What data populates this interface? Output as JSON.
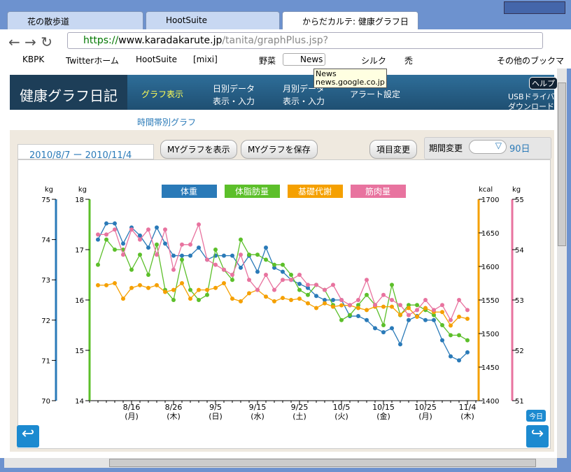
{
  "browser": {
    "tabs": [
      "花の散歩道",
      "HootSuite",
      "からだカルテ: 健康グラフ日記..."
    ],
    "url": {
      "scheme": "https://",
      "host": "www.karadakarute.jp",
      "path": "/tanita/graphPlus.jsp?"
    },
    "bookmarks": [
      "KBPK",
      "Twitterホーム",
      "HootSuite",
      "[mixi]",
      "野菜",
      "News",
      "シルク",
      "禿"
    ],
    "other_bookmarks": "その他のブックマーク",
    "tooltip": [
      "News",
      "news.google.co.jp"
    ]
  },
  "site": {
    "logo": "健康グラフ日記",
    "nav": [
      [
        "グラフ表示"
      ],
      [
        "日別データ",
        "表示・入力"
      ],
      [
        "月別データ",
        "表示・入力"
      ],
      [
        "アラート設定"
      ]
    ],
    "help": "ヘルプ",
    "usb": [
      "USBドライバ",
      "ダウンロード"
    ],
    "subnav": "時間帯別グラフ",
    "range": "2010/8/7 ー 2010/11/4",
    "buttons": [
      "MYグラフを表示",
      "MYグラフを保存",
      "項目変更"
    ],
    "period_label": "期間変更",
    "period": "90日",
    "today": "今日"
  },
  "chart_data": {
    "type": "line",
    "xlim": [
      "8/6",
      "11/7"
    ],
    "xticks": [
      "8/16",
      "8/26",
      "9/5",
      "9/15",
      "9/25",
      "10/5",
      "10/15",
      "10/25",
      "11/4"
    ],
    "xtick_weekdays": [
      "(月)",
      "(木)",
      "(日)",
      "(水)",
      "(土)",
      "(火)",
      "(金)",
      "(月)",
      "(木)"
    ],
    "x": [
      "8/8",
      "8/10",
      "8/12",
      "8/14",
      "8/16",
      "8/18",
      "8/20",
      "8/22",
      "8/24",
      "8/26",
      "8/28",
      "8/30",
      "9/1",
      "9/3",
      "9/5",
      "9/7",
      "9/9",
      "9/11",
      "9/13",
      "9/15",
      "9/17",
      "9/19",
      "9/21",
      "9/23",
      "9/25",
      "9/27",
      "9/29",
      "10/1",
      "10/3",
      "10/5",
      "10/7",
      "10/9",
      "10/11",
      "10/13",
      "10/15",
      "10/17",
      "10/19",
      "10/21",
      "10/23",
      "10/25",
      "10/27",
      "10/29",
      "10/31",
      "11/2",
      "11/4"
    ],
    "series": [
      {
        "name": "体重",
        "color": "#2a7ab8",
        "unit": "kg",
        "side": "left-outer",
        "ylim": [
          70,
          75
        ],
        "yticks": [
          70,
          71,
          72,
          73,
          74,
          75
        ],
        "values": [
          74.0,
          74.4,
          74.4,
          73.9,
          74.3,
          74.1,
          73.8,
          74.3,
          73.9,
          73.6,
          73.6,
          73.6,
          73.8,
          73.5,
          73.6,
          73.6,
          73.6,
          73.3,
          73.6,
          73.2,
          73.8,
          73.3,
          73.2,
          73.0,
          72.9,
          72.8,
          72.6,
          72.5,
          72.5,
          72.5,
          72.1,
          72.1,
          72.0,
          71.8,
          71.7,
          71.8,
          71.4,
          72.0,
          72.1,
          72.0,
          72.0,
          71.5,
          71.1,
          71.0,
          71.2
        ]
      },
      {
        "name": "体脂肪量",
        "color": "#5cbf2a",
        "unit": "kg",
        "side": "left-inner",
        "ylim": [
          14,
          18
        ],
        "yticks": [
          14,
          15,
          16,
          17,
          18
        ],
        "values": [
          16.7,
          17.2,
          17.0,
          17.0,
          16.6,
          16.9,
          16.5,
          17.1,
          16.2,
          16.0,
          16.8,
          16.2,
          16.0,
          16.1,
          17.0,
          16.6,
          16.4,
          17.2,
          16.9,
          16.9,
          16.8,
          16.7,
          16.7,
          16.5,
          16.2,
          16.1,
          16.3,
          16.2,
          15.9,
          15.6,
          15.7,
          15.9,
          16.1,
          15.9,
          15.5,
          16.3,
          15.7,
          15.9,
          15.9,
          15.8,
          15.7,
          15.5,
          15.3,
          15.3,
          15.2
        ]
      },
      {
        "name": "基礎代謝",
        "color": "#f5a000",
        "unit": "kcal",
        "side": "right-inner",
        "ylim": [
          1400,
          1700
        ],
        "yticks": [
          1400,
          1450,
          1500,
          1550,
          1600,
          1650,
          1700
        ],
        "values": [
          1572,
          1572,
          1575,
          1552,
          1568,
          1572,
          1568,
          1572,
          1562,
          1565,
          1575,
          1552,
          1565,
          1565,
          1568,
          1575,
          1552,
          1548,
          1560,
          1565,
          1555,
          1548,
          1553,
          1550,
          1552,
          1545,
          1538,
          1545,
          1540,
          1542,
          1542,
          1538,
          1535,
          1540,
          1540,
          1540,
          1528,
          1538,
          1525,
          1538,
          1532,
          1532,
          1512,
          1525,
          1522
        ]
      },
      {
        "name": "筋肉量",
        "color": "#e8739f",
        "unit": "kg",
        "side": "right-outer",
        "ylim": [
          51,
          55
        ],
        "yticks": [
          51,
          52,
          53,
          54,
          55
        ],
        "values": [
          54.3,
          54.3,
          54.4,
          53.9,
          54.4,
          54.2,
          54.4,
          53.9,
          54.4,
          53.6,
          54.1,
          54.1,
          54.5,
          53.8,
          53.7,
          53.6,
          53.5,
          53.9,
          53.4,
          53.2,
          53.5,
          53.2,
          53.4,
          53.4,
          53.5,
          53.3,
          53.3,
          53.2,
          53.3,
          53.0,
          52.9,
          53.0,
          53.4,
          52.9,
          53.1,
          53.0,
          52.9,
          52.7,
          52.8,
          53.0,
          52.8,
          52.9,
          52.6,
          53.0,
          52.8
        ]
      }
    ]
  }
}
